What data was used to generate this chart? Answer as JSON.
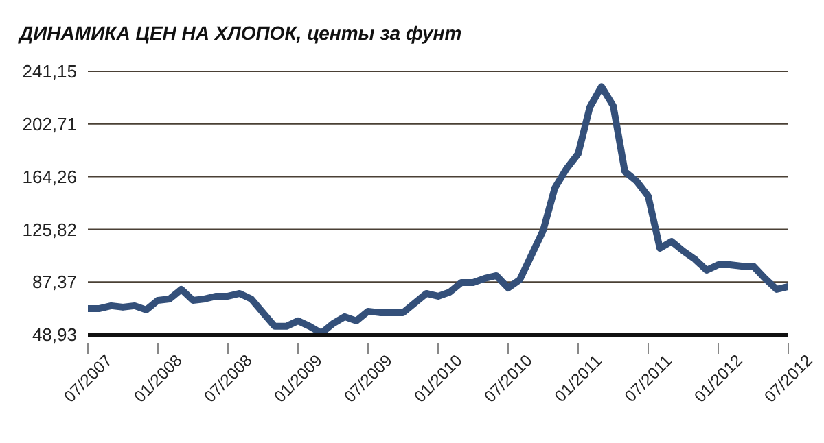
{
  "chart_data": {
    "type": "line",
    "title": "ДИНАМИКА ЦЕН НА ХЛОПОК, центы за фунт",
    "categories": [
      "07/2007",
      null,
      null,
      null,
      null,
      null,
      "01/2008",
      null,
      null,
      null,
      null,
      null,
      "07/2008",
      null,
      null,
      null,
      null,
      null,
      "01/2009",
      null,
      null,
      null,
      null,
      null,
      "07/2009",
      null,
      null,
      null,
      null,
      null,
      "01/2010",
      null,
      null,
      null,
      null,
      null,
      "07/2010",
      null,
      null,
      null,
      null,
      null,
      "01/2011",
      null,
      null,
      null,
      null,
      null,
      "07/2011",
      null,
      null,
      null,
      null,
      null,
      "01/2012",
      null,
      null,
      null,
      null,
      null,
      "07/2012"
    ],
    "series": [
      {
        "color": "#34507a",
        "values": [
          68,
          68,
          70,
          69,
          70,
          67,
          74,
          75,
          82,
          74,
          75,
          77,
          77,
          79,
          75,
          65,
          55,
          55,
          59,
          55,
          50,
          57,
          62,
          59,
          66,
          65,
          65,
          65,
          72,
          79,
          77,
          80,
          87,
          87,
          90,
          92,
          83,
          89,
          107,
          125,
          156,
          170,
          181,
          215,
          230,
          216,
          168,
          161,
          150,
          112,
          117,
          110,
          104,
          96,
          100,
          100,
          99,
          99,
          90,
          82,
          84
        ]
      }
    ],
    "ylim": [
      48.93,
      241.15
    ],
    "yticks": [
      {
        "value": 48.93,
        "label": "48,93"
      },
      {
        "value": 87.37,
        "label": "87,37"
      },
      {
        "value": 125.82,
        "label": "125,82"
      },
      {
        "value": 164.26,
        "label": "164,26"
      },
      {
        "value": 202.71,
        "label": "202,71"
      },
      {
        "value": 241.15,
        "label": "241,15"
      }
    ],
    "grid": "y",
    "legend": false,
    "marker": "none",
    "line_style": "solid"
  }
}
